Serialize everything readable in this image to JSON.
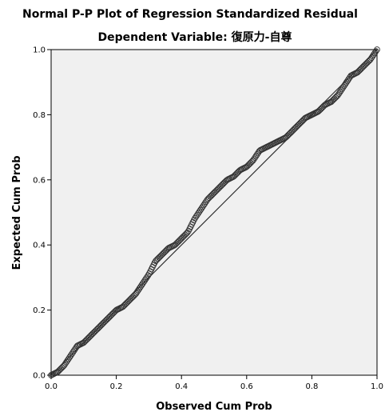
{
  "chart_data": {
    "type": "scatter",
    "title": "Normal P-P Plot of Regression Standardized Residual",
    "subtitle": "Dependent Variable: 復原力-自尊",
    "xlabel": "Observed Cum Prob",
    "ylabel": "Expected Cum Prob",
    "xlim": [
      0,
      1
    ],
    "ylim": [
      0,
      1
    ],
    "x_ticks": [
      "0.0",
      "0.2",
      "0.4",
      "0.6",
      "0.8",
      "1.0"
    ],
    "y_ticks": [
      "0.0",
      "0.2",
      "0.4",
      "0.6",
      "0.8",
      "1.0"
    ],
    "grid": false,
    "legend": "none",
    "reference_line": {
      "from": [
        0,
        0
      ],
      "to": [
        1,
        1
      ]
    },
    "points_curve": [
      [
        0.0,
        0.0
      ],
      [
        0.02,
        0.01
      ],
      [
        0.04,
        0.03
      ],
      [
        0.06,
        0.06
      ],
      [
        0.08,
        0.09
      ],
      [
        0.1,
        0.1
      ],
      [
        0.12,
        0.12
      ],
      [
        0.15,
        0.15
      ],
      [
        0.18,
        0.18
      ],
      [
        0.2,
        0.2
      ],
      [
        0.22,
        0.21
      ],
      [
        0.24,
        0.23
      ],
      [
        0.26,
        0.25
      ],
      [
        0.28,
        0.28
      ],
      [
        0.3,
        0.31
      ],
      [
        0.32,
        0.35
      ],
      [
        0.34,
        0.37
      ],
      [
        0.36,
        0.39
      ],
      [
        0.38,
        0.4
      ],
      [
        0.4,
        0.42
      ],
      [
        0.42,
        0.44
      ],
      [
        0.44,
        0.48
      ],
      [
        0.46,
        0.51
      ],
      [
        0.48,
        0.54
      ],
      [
        0.5,
        0.56
      ],
      [
        0.52,
        0.58
      ],
      [
        0.54,
        0.6
      ],
      [
        0.56,
        0.61
      ],
      [
        0.58,
        0.63
      ],
      [
        0.6,
        0.64
      ],
      [
        0.62,
        0.66
      ],
      [
        0.64,
        0.69
      ],
      [
        0.66,
        0.7
      ],
      [
        0.68,
        0.71
      ],
      [
        0.7,
        0.72
      ],
      [
        0.72,
        0.73
      ],
      [
        0.74,
        0.75
      ],
      [
        0.76,
        0.77
      ],
      [
        0.78,
        0.79
      ],
      [
        0.8,
        0.8
      ],
      [
        0.82,
        0.81
      ],
      [
        0.84,
        0.83
      ],
      [
        0.86,
        0.84
      ],
      [
        0.88,
        0.86
      ],
      [
        0.9,
        0.89
      ],
      [
        0.92,
        0.92
      ],
      [
        0.94,
        0.93
      ],
      [
        0.96,
        0.95
      ],
      [
        0.98,
        0.97
      ],
      [
        1.0,
        1.0
      ]
    ],
    "point_count": 300,
    "colors": {
      "plot_background": "#f0f0f0",
      "marker_stroke": "#333333",
      "line": "#333333"
    }
  }
}
